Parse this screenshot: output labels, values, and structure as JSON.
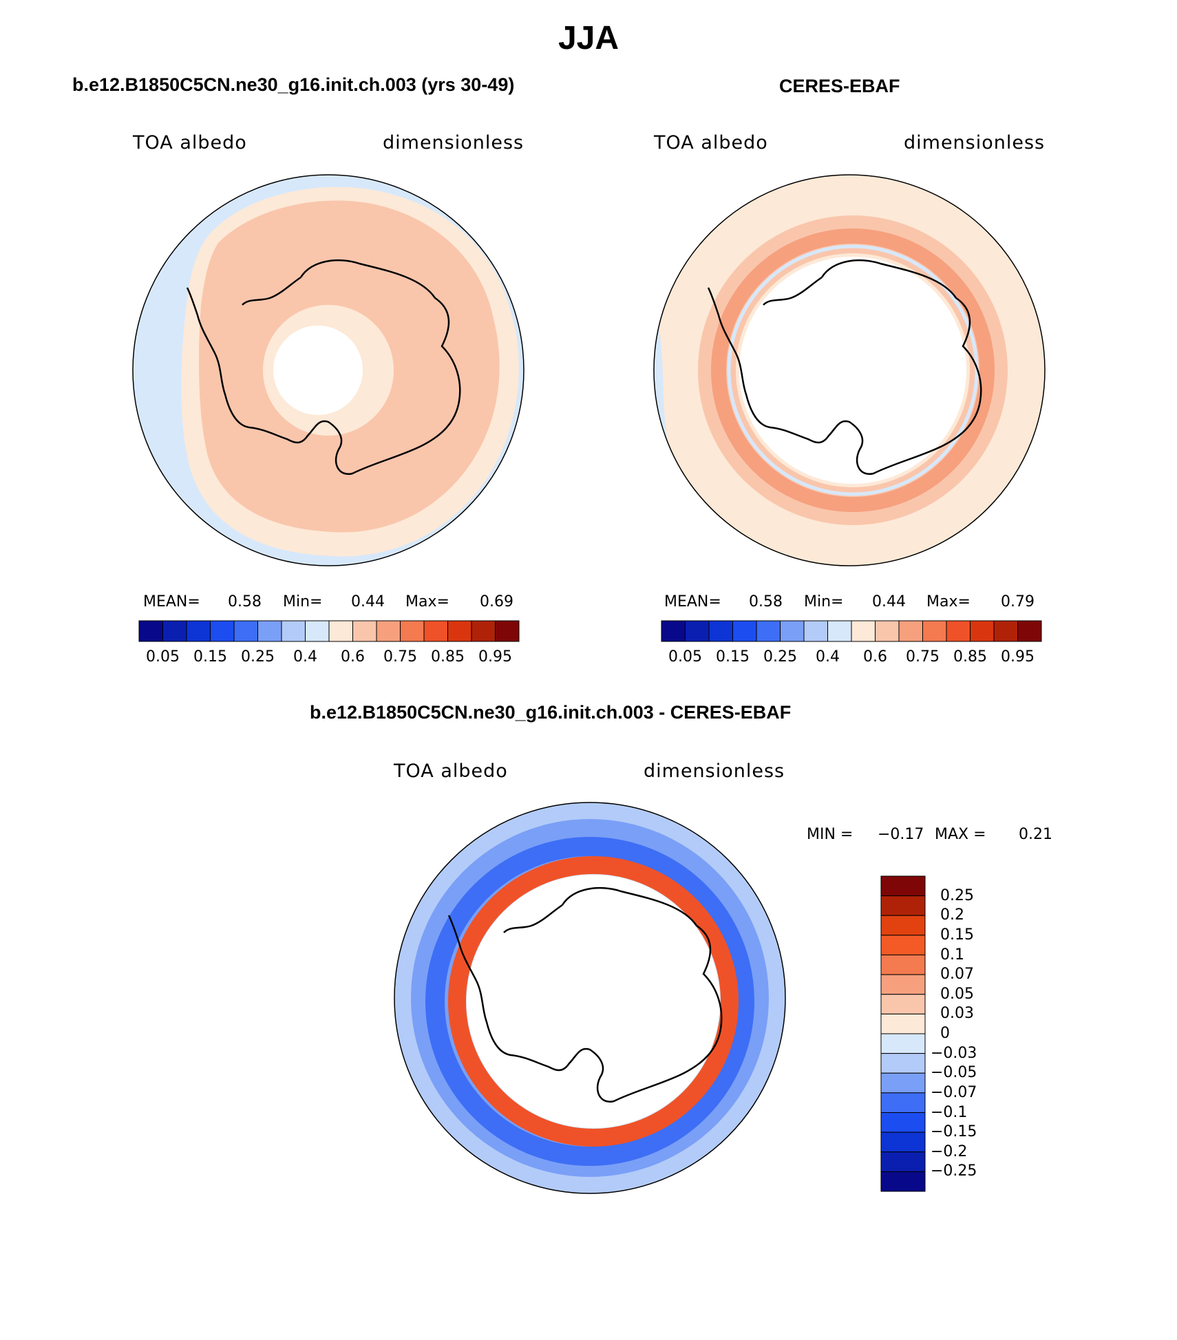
{
  "figure": {
    "title": "JJA"
  },
  "panels": [
    {
      "title": "b.e12.B1850C5CN.ne30_g16.init.ch.003 (yrs 30-49)",
      "variable": "TOA albedo",
      "units": "dimensionless",
      "stats": {
        "mean_label": "MEAN=",
        "mean": "0.58",
        "min_label": "Min=",
        "min": "0.44",
        "max_label": "Max=",
        "max": "0.69"
      }
    },
    {
      "title": "CERES-EBAF",
      "variable": "TOA albedo",
      "units": "dimensionless",
      "stats": {
        "mean_label": "MEAN=",
        "mean": "0.58",
        "min_label": "Min=",
        "min": "0.44",
        "max_label": "Max=",
        "max": "0.79"
      }
    },
    {
      "title": "b.e12.B1850C5CN.ne30_g16.init.ch.003 - CERES-EBAF",
      "variable": "TOA albedo",
      "units": "dimensionless",
      "stats": {
        "min_label": "MIN =",
        "min": "−0.17",
        "max_label": "MAX =",
        "max": "0.21"
      }
    }
  ],
  "colorbars": {
    "albedo": {
      "colors": [
        "#08088a",
        "#0a1fb0",
        "#0d34d4",
        "#1c4df0",
        "#3d6ef5",
        "#7a9ff7",
        "#b3cbf8",
        "#d7e8fb",
        "#fde9d7",
        "#f9c6ac",
        "#f6a07e",
        "#f47a50",
        "#ef5228",
        "#d9360f",
        "#b02208",
        "#7e0606"
      ],
      "tick_labels": [
        "0.05",
        "0.15",
        "0.25",
        "0.4",
        "0.6",
        "0.75",
        "0.85",
        "0.95"
      ]
    },
    "difference": {
      "colors": [
        "#7e0606",
        "#b02208",
        "#e1420f",
        "#f45a25",
        "#f47a50",
        "#f6a07e",
        "#f9c6ac",
        "#fde9d7",
        "#d7e8fb",
        "#b3cbf8",
        "#7a9ff7",
        "#3d6ef5",
        "#1c4df0",
        "#0d34d4",
        "#0a1fb0",
        "#08088a"
      ],
      "tick_labels": [
        "0.25",
        "0.2",
        "0.15",
        "0.1",
        "0.07",
        "0.05",
        "0.03",
        "0",
        "−0.03",
        "−0.05",
        "−0.07",
        "−0.1",
        "−0.15",
        "−0.2",
        "−0.25"
      ]
    }
  },
  "map_colors": {
    "ocean_low": "#d7e8fb",
    "albedo_mid": "#fde9d7",
    "albedo_high": "#f9c6ac",
    "albedo_higher": "#f6a07e",
    "diff_pos": "#ef5228",
    "diff_neg": "#3d6ef5",
    "diff_neg_strong": "#1c4df0"
  }
}
